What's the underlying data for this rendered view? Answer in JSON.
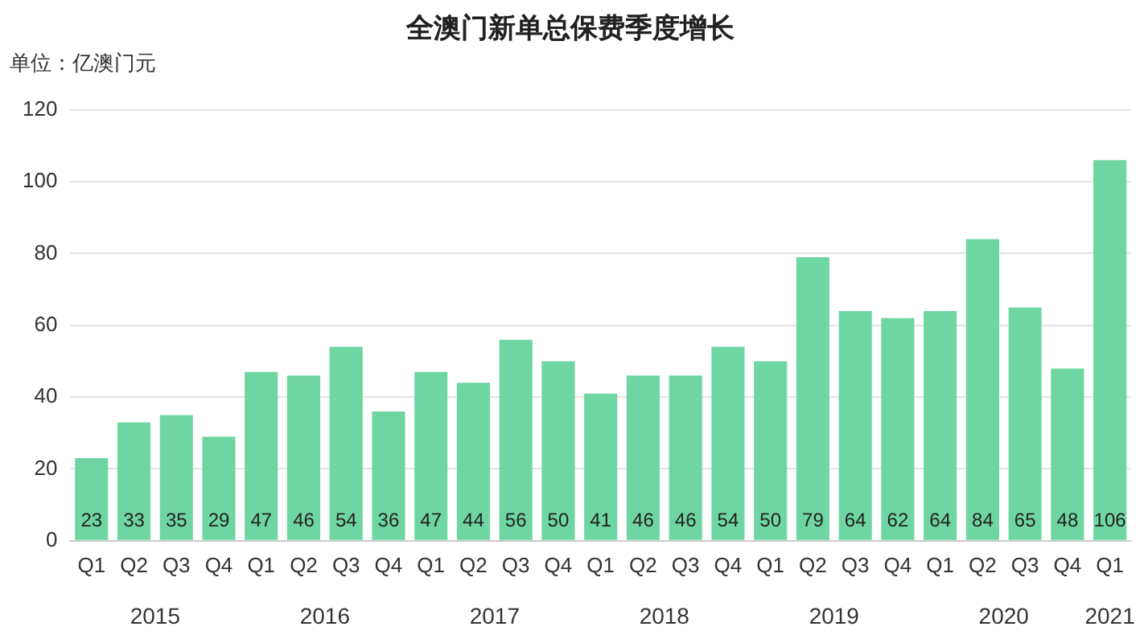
{
  "chart_data": {
    "type": "bar",
    "title": "全澳门新单总保费季度增长",
    "ylabel": "单位：亿澳门元",
    "categories": [
      "Q1",
      "Q2",
      "Q3",
      "Q4",
      "Q1",
      "Q2",
      "Q3",
      "Q4",
      "Q1",
      "Q2",
      "Q3",
      "Q4",
      "Q1",
      "Q2",
      "Q3",
      "Q4",
      "Q1",
      "Q2",
      "Q3",
      "Q4",
      "Q1",
      "Q2",
      "Q3",
      "Q4",
      "Q1"
    ],
    "values": [
      23,
      33,
      35,
      29,
      47,
      46,
      54,
      36,
      47,
      44,
      56,
      50,
      41,
      46,
      46,
      54,
      50,
      79,
      64,
      62,
      64,
      84,
      65,
      48,
      106
    ],
    "color": "#6fd6a3",
    "ylim": [
      0,
      120
    ],
    "yticks": [
      0,
      20,
      40,
      60,
      80,
      100,
      120
    ],
    "grid": "y",
    "data_labels": true,
    "annotations": [
      "2015",
      "2016",
      "2017",
      "2018",
      "2019",
      "2020",
      "2021"
    ]
  }
}
